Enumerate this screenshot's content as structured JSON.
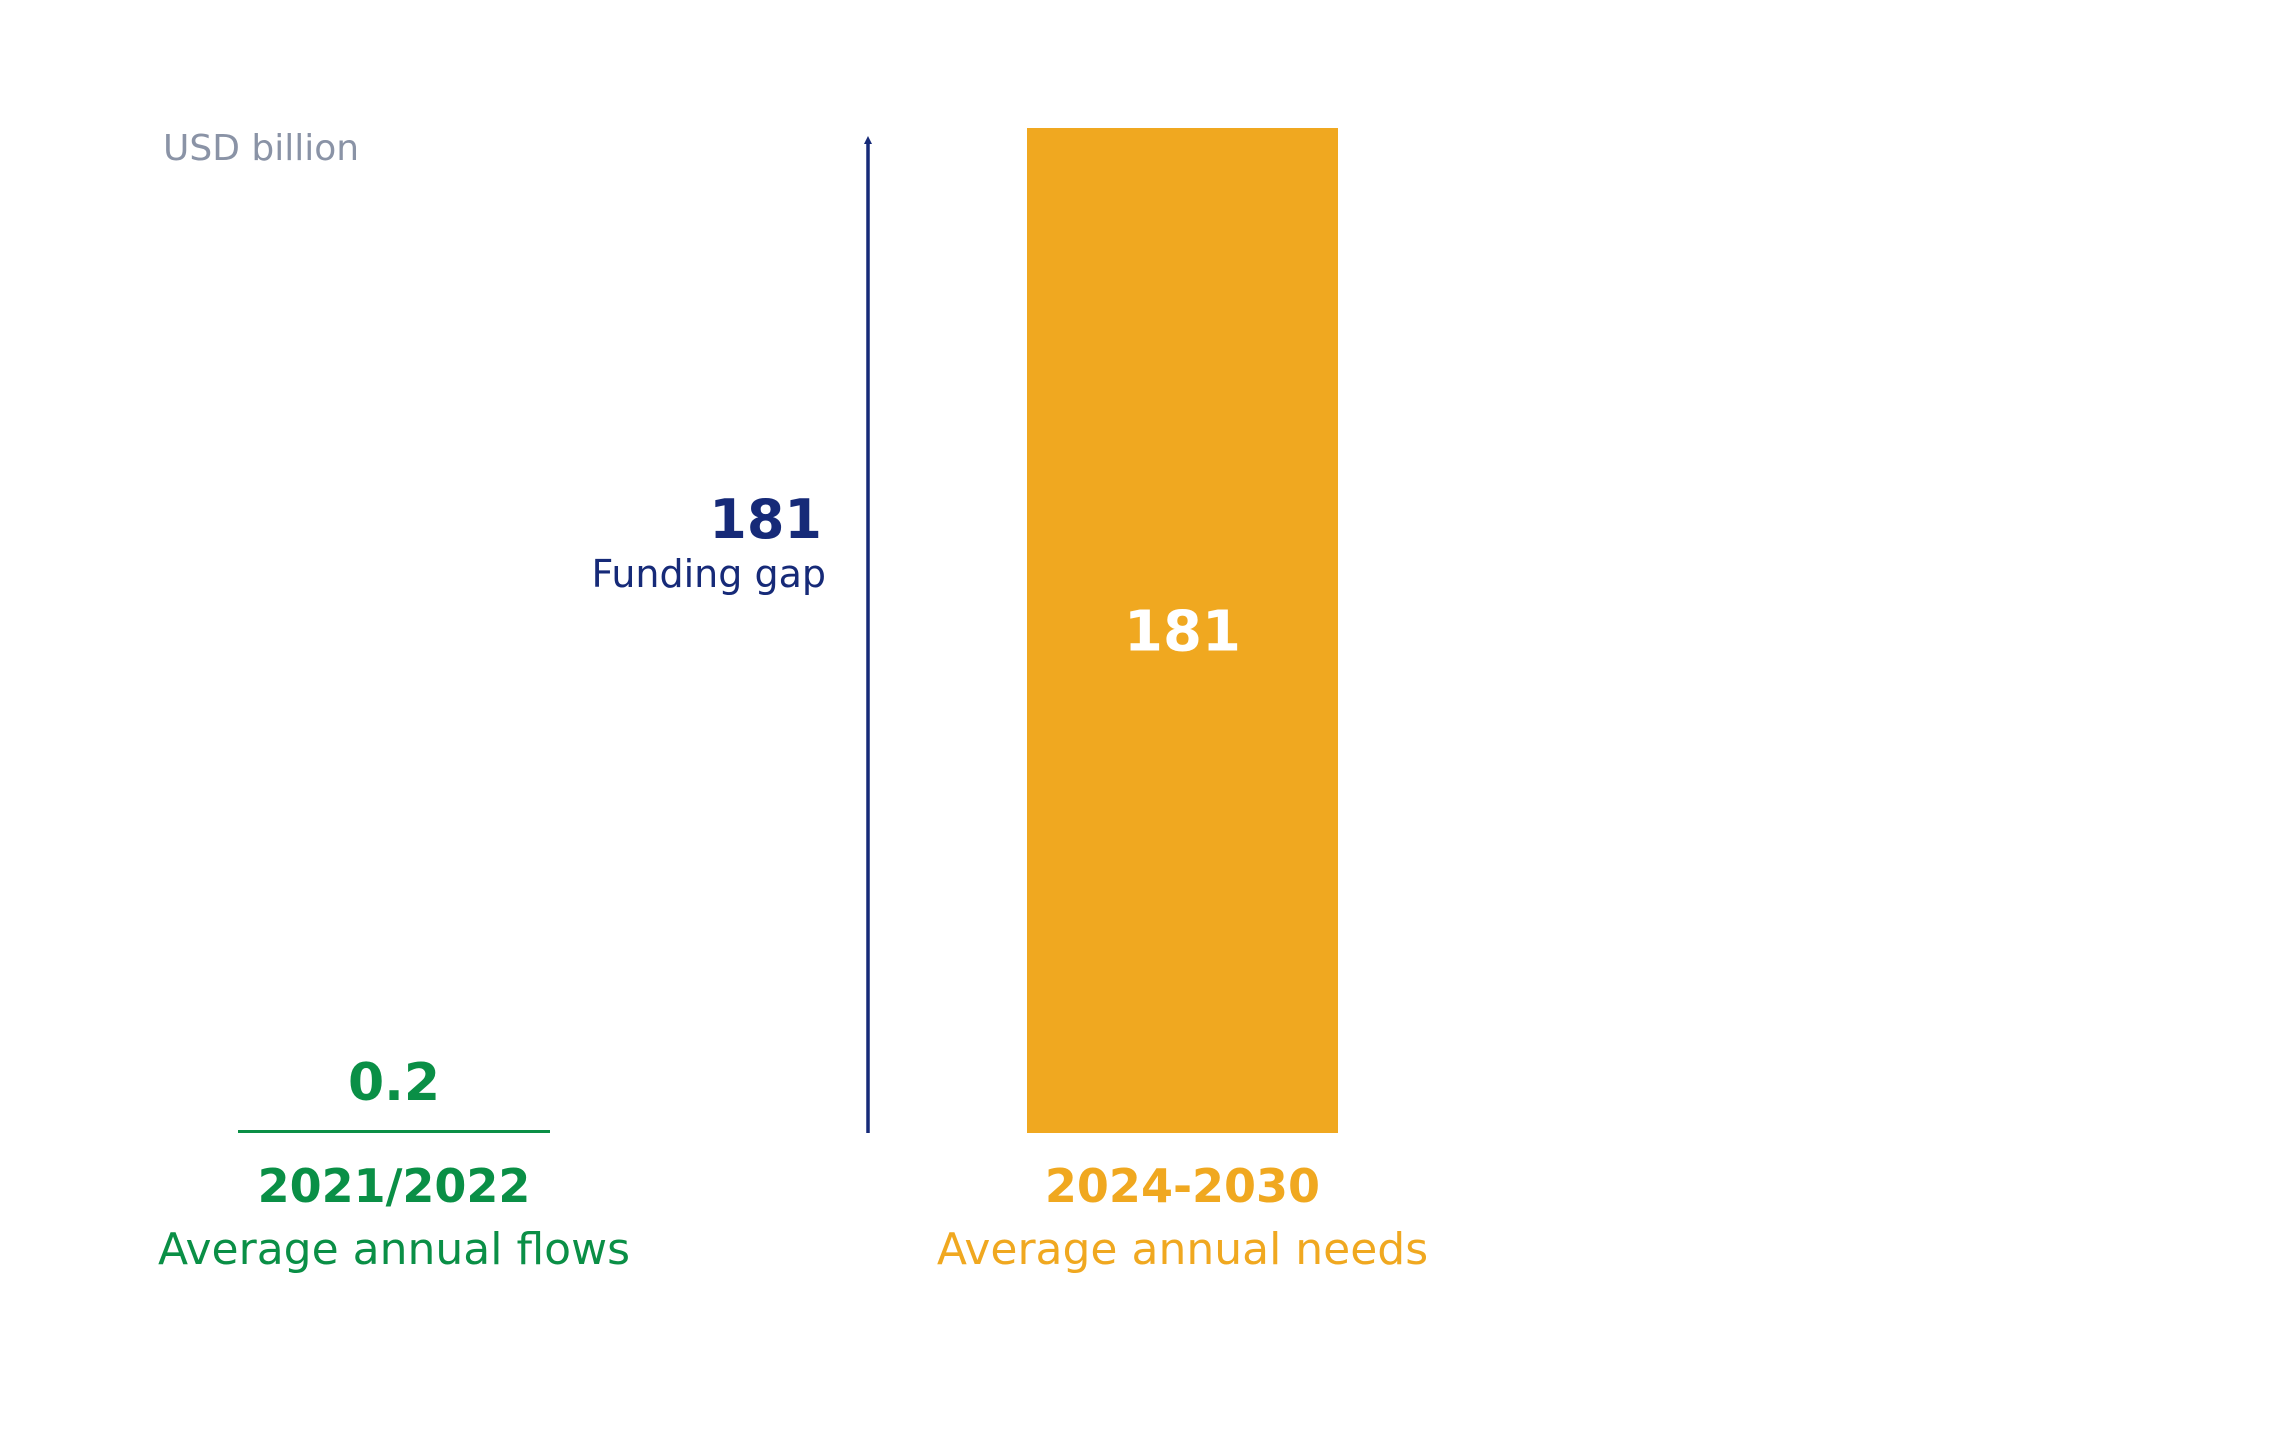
{
  "chart_data": {
    "type": "bar",
    "unit_label": "USD billion",
    "colors": {
      "flows": "#0a8f46",
      "needs": "#f0a820",
      "gap": "#162a78",
      "unit": "#8a93a6"
    },
    "ylim": [
      0,
      181
    ],
    "bars": [
      {
        "period": "2021/2022",
        "caption": "Average annual flows",
        "value": 0.2,
        "value_label": "0.2"
      },
      {
        "period": "2024-2030",
        "caption": "Average annual needs",
        "value": 181,
        "value_label": "181"
      }
    ],
    "gap": {
      "value": 181,
      "value_label": "181",
      "label": "Funding gap"
    }
  }
}
